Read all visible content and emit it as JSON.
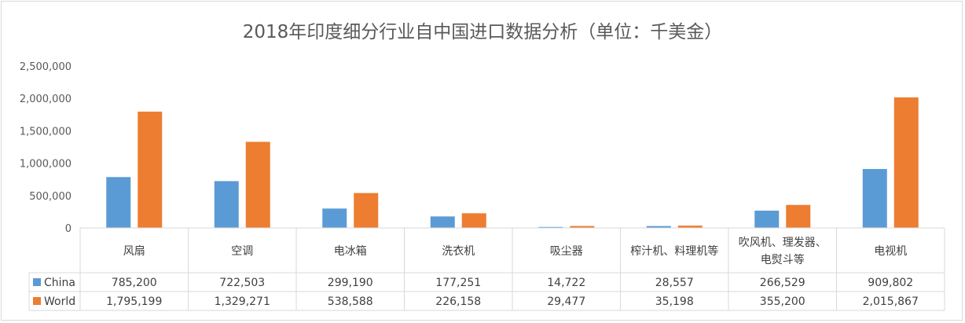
{
  "chart_data": {
    "type": "bar",
    "title": "2018年印度细分行业自中国进口数据分析（单位：千美金）",
    "categories": [
      [
        "风扇"
      ],
      [
        "空调"
      ],
      [
        "电冰箱"
      ],
      [
        "洗衣机"
      ],
      [
        "吸尘器"
      ],
      [
        "榨汁机、料理机等"
      ],
      [
        "吹风机、理发器、",
        "电熨斗等"
      ],
      [
        "电视机"
      ]
    ],
    "series": [
      {
        "name": "China",
        "color": "#5b9bd5",
        "values": [
          785200,
          722503,
          299190,
          177251,
          14722,
          28557,
          266529,
          909802
        ],
        "labels": [
          "785,200",
          "722,503",
          "299,190",
          "177,251",
          "14,722",
          "28,557",
          "266,529",
          "909,802"
        ]
      },
      {
        "name": "World",
        "color": "#ed7d31",
        "values": [
          1795199,
          1329271,
          538588,
          226158,
          29477,
          35198,
          355200,
          2015867
        ],
        "labels": [
          "1,795,199",
          "1,329,271",
          "538,588",
          "226,158",
          "29,477",
          "35,198",
          "355,200",
          "2,015,867"
        ]
      }
    ],
    "ylim": [
      0,
      2500000
    ],
    "yticks": [
      0,
      500000,
      1000000,
      1500000,
      2000000,
      2500000
    ],
    "ytick_labels": [
      "0",
      "500,000",
      "1,000,000",
      "1,500,000",
      "2,000,000",
      "2,500,000"
    ],
    "grid": false,
    "legend": "data-table"
  }
}
